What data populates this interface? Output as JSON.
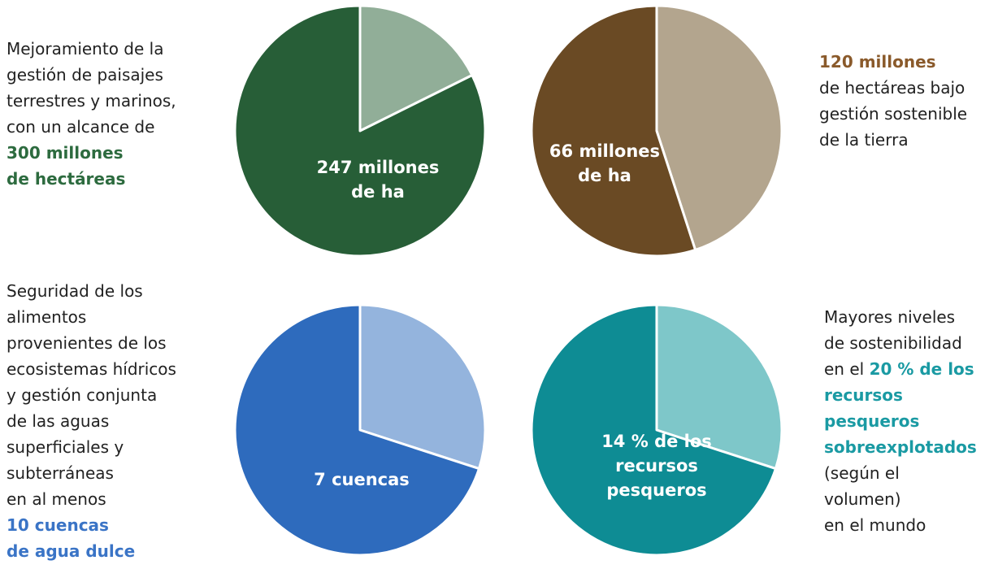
{
  "captions": [
    {
      "lines": [
        {
          "text": "Mejoramiento de la",
          "hl": false
        },
        {
          "text": "gestión de paisajes",
          "hl": false
        },
        {
          "text": "terrestres y marinos,",
          "hl": false
        },
        {
          "text": "con un alcance de",
          "hl": false
        },
        {
          "text": "300 millones",
          "hl": true
        },
        {
          "text": "de hectáreas",
          "hl": true
        }
      ]
    },
    {
      "lines": [
        {
          "text": "120 millones",
          "hl": true
        },
        {
          "text": "de hectáreas bajo",
          "hl": false
        },
        {
          "text": "gestión sostenible",
          "hl": false
        },
        {
          "text": "de la tierra",
          "hl": false
        }
      ]
    },
    {
      "lines": [
        {
          "text": "Seguridad de los",
          "hl": false
        },
        {
          "text": "alimentos",
          "hl": false
        },
        {
          "text": "provenientes de los",
          "hl": false
        },
        {
          "text": "ecosistemas hídricos",
          "hl": false
        },
        {
          "text": "y gestión conjunta",
          "hl": false
        },
        {
          "text": "de las aguas",
          "hl": false
        },
        {
          "text": "superficiales y",
          "hl": false
        },
        {
          "text": "subterráneas",
          "hl": false
        },
        {
          "text": "en al menos",
          "hl": false
        },
        {
          "text": "10 cuencas",
          "hl": true
        },
        {
          "text": "de agua dulce",
          "hl": true
        }
      ]
    },
    {
      "lines": [
        {
          "text": "Mayores niveles",
          "hl": false
        },
        {
          "text": "de sostenibilidad",
          "hl": false
        },
        {
          "text": "en el 20 % de los",
          "hl": "partial",
          "plain": "en el ",
          "bold": "20 % de los"
        },
        {
          "text": "recursos",
          "hl": true
        },
        {
          "text": "pesqueros",
          "hl": true
        },
        {
          "text": "sobreexplotados",
          "hl": true
        },
        {
          "text": "(según el",
          "hl": false
        },
        {
          "text": "volumen)",
          "hl": false
        },
        {
          "text": "en el mundo",
          "hl": false
        }
      ]
    }
  ],
  "chart_data": [
    {
      "type": "pie",
      "total": 300,
      "unit": "millones de ha",
      "slices": [
        {
          "label": "247 millones de ha",
          "label_lines": [
            "247 millones",
            "de ha"
          ],
          "value": 247,
          "color": "#275e37"
        },
        {
          "label": "",
          "value": 53,
          "color": "#91ae98"
        }
      ]
    },
    {
      "type": "pie",
      "total": 120,
      "unit": "millones de ha",
      "slices": [
        {
          "label": "66 millones de ha",
          "label_lines": [
            "66 millones",
            "de ha"
          ],
          "value": 66,
          "color": "#6a4a24"
        },
        {
          "label": "",
          "value": 54,
          "color": "#b3a58e"
        }
      ]
    },
    {
      "type": "pie",
      "total": 10,
      "unit": "cuencas",
      "slices": [
        {
          "label": "7 cuencas",
          "label_lines": [
            "7 cuencas"
          ],
          "value": 7,
          "color": "#2e6bbd"
        },
        {
          "label": "",
          "value": 3,
          "color": "#94b4dd"
        }
      ]
    },
    {
      "type": "pie",
      "total": 20,
      "unit": "% de los recursos pesqueros",
      "slices": [
        {
          "label": "14 % de los recursos pesqueros",
          "label_lines": [
            "14 % de los",
            "recursos",
            "pesqueros"
          ],
          "value": 14,
          "color": "#0e8c94"
        },
        {
          "label": "",
          "value": 6,
          "color": "#7ec7c9"
        }
      ]
    }
  ],
  "colors": {
    "highlight": [
      "#2d6b3f",
      "#8a5a2b",
      "#3a74c6",
      "#1a9aa3"
    ]
  }
}
